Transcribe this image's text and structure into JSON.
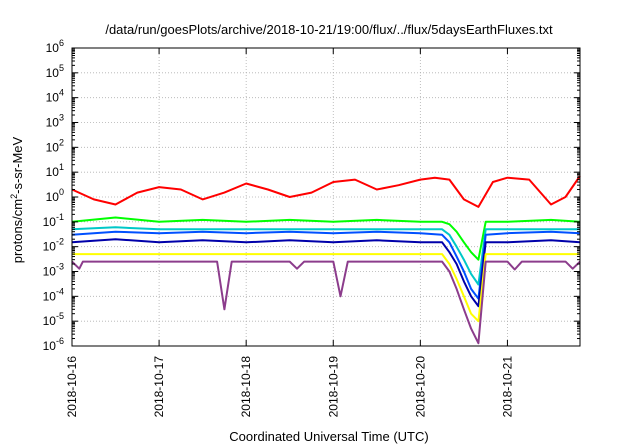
{
  "chart_data": {
    "type": "line",
    "title": "/data/run/goesPlots/archive/2018-10-21/19:00/flux/../flux/5daysEarthFluxes.txt",
    "xlabel": "Coordinated Universal Time (UTC)",
    "ylabel": {
      "base": "protons/cm",
      "sup": "2",
      "rest": "-s-sr-MeV"
    },
    "yscale": "log",
    "ylim": [
      1e-06,
      1000000.0
    ],
    "xlim": [
      "2018-10-16",
      "2018-10-21 20:00"
    ],
    "grid": true,
    "x_ticks": [
      "2018-10-16",
      "2018-10-17",
      "2018-10-18",
      "2018-10-19",
      "2018-10-20",
      "2018-10-21"
    ],
    "y_ticks": [
      {
        "exp": "-6",
        "value": 1e-06
      },
      {
        "exp": "-5",
        "value": 1e-05
      },
      {
        "exp": "-4",
        "value": 0.0001
      },
      {
        "exp": "-3",
        "value": 0.001
      },
      {
        "exp": "-2",
        "value": 0.01
      },
      {
        "exp": "-1",
        "value": 0.1
      },
      {
        "exp": "0",
        "value": 1
      },
      {
        "exp": "1",
        "value": 10
      },
      {
        "exp": "2",
        "value": 100
      },
      {
        "exp": "3",
        "value": 1000
      },
      {
        "exp": "4",
        "value": 10000
      },
      {
        "exp": "5",
        "value": 100000
      },
      {
        "exp": "6",
        "value": 1000000
      }
    ],
    "series": [
      {
        "color": "#ff0000",
        "x": [
          "2018-10-16 00:00",
          "2018-10-16 06:00",
          "2018-10-16 12:00",
          "2018-10-16 18:00",
          "2018-10-17 00:00",
          "2018-10-17 06:00",
          "2018-10-17 12:00",
          "2018-10-17 18:00",
          "2018-10-18 00:00",
          "2018-10-18 06:00",
          "2018-10-18 12:00",
          "2018-10-18 18:00",
          "2018-10-19 00:00",
          "2018-10-19 06:00",
          "2018-10-19 12:00",
          "2018-10-19 18:00",
          "2018-10-20 00:00",
          "2018-10-20 04:00",
          "2018-10-20 08:00",
          "2018-10-20 12:00",
          "2018-10-20 16:00",
          "2018-10-20 20:00",
          "2018-10-21 00:00",
          "2018-10-21 06:00",
          "2018-10-21 12:00",
          "2018-10-21 16:00",
          "2018-10-21 20:00"
        ],
        "y": [
          2,
          0.8,
          0.5,
          1.5,
          2.5,
          2,
          0.8,
          1.5,
          3.5,
          2,
          1,
          1.5,
          4,
          5,
          2,
          3,
          5,
          6,
          5,
          0.8,
          0.4,
          4,
          6,
          5,
          0.5,
          1,
          7
        ]
      },
      {
        "color": "#00ff00",
        "x": [
          "2018-10-16 00:00",
          "2018-10-16 12:00",
          "2018-10-17 00:00",
          "2018-10-17 12:00",
          "2018-10-18 00:00",
          "2018-10-18 12:00",
          "2018-10-19 00:00",
          "2018-10-19 12:00",
          "2018-10-20 00:00",
          "2018-10-20 06:00",
          "2018-10-20 08:00",
          "2018-10-20 10:00",
          "2018-10-20 12:00",
          "2018-10-20 14:00",
          "2018-10-20 16:00",
          "2018-10-20 18:00",
          "2018-10-21 00:00",
          "2018-10-21 12:00",
          "2018-10-21 20:00"
        ],
        "y": [
          0.1,
          0.15,
          0.1,
          0.12,
          0.1,
          0.12,
          0.1,
          0.12,
          0.1,
          0.1,
          0.08,
          0.04,
          0.015,
          0.006,
          0.003,
          0.1,
          0.1,
          0.12,
          0.1
        ]
      },
      {
        "color": "#00c8c8",
        "x": [
          "2018-10-16 00:00",
          "2018-10-16 12:00",
          "2018-10-17 00:00",
          "2018-10-17 12:00",
          "2018-10-18 00:00",
          "2018-10-18 12:00",
          "2018-10-19 00:00",
          "2018-10-19 12:00",
          "2018-10-20 00:00",
          "2018-10-20 06:00",
          "2018-10-20 08:00",
          "2018-10-20 10:00",
          "2018-10-20 12:00",
          "2018-10-20 14:00",
          "2018-10-20 16:00",
          "2018-10-20 18:00",
          "2018-10-21 00:00",
          "2018-10-21 12:00",
          "2018-10-21 20:00"
        ],
        "y": [
          0.05,
          0.06,
          0.05,
          0.05,
          0.05,
          0.05,
          0.05,
          0.05,
          0.05,
          0.05,
          0.03,
          0.01,
          0.003,
          0.0008,
          0.0003,
          0.05,
          0.05,
          0.05,
          0.05
        ]
      },
      {
        "color": "#0050ff",
        "x": [
          "2018-10-16 00:00",
          "2018-10-16 12:00",
          "2018-10-17 00:00",
          "2018-10-17 12:00",
          "2018-10-18 00:00",
          "2018-10-18 12:00",
          "2018-10-19 00:00",
          "2018-10-19 12:00",
          "2018-10-20 00:00",
          "2018-10-20 06:00",
          "2018-10-20 08:00",
          "2018-10-20 10:00",
          "2018-10-20 12:00",
          "2018-10-20 14:00",
          "2018-10-20 16:00",
          "2018-10-20 18:00",
          "2018-10-21 00:00",
          "2018-10-21 12:00",
          "2018-10-21 20:00"
        ],
        "y": [
          0.03,
          0.04,
          0.035,
          0.04,
          0.035,
          0.04,
          0.035,
          0.04,
          0.035,
          0.03,
          0.015,
          0.004,
          0.001,
          0.0002,
          8e-05,
          0.03,
          0.035,
          0.04,
          0.035
        ]
      },
      {
        "color": "#0000aa",
        "x": [
          "2018-10-16 00:00",
          "2018-10-16 12:00",
          "2018-10-17 00:00",
          "2018-10-17 12:00",
          "2018-10-18 00:00",
          "2018-10-18 12:00",
          "2018-10-19 00:00",
          "2018-10-19 12:00",
          "2018-10-20 00:00",
          "2018-10-20 06:00",
          "2018-10-20 08:00",
          "2018-10-20 10:00",
          "2018-10-20 12:00",
          "2018-10-20 14:00",
          "2018-10-20 16:00",
          "2018-10-20 18:00",
          "2018-10-21 00:00",
          "2018-10-21 12:00",
          "2018-10-21 20:00"
        ],
        "y": [
          0.015,
          0.02,
          0.015,
          0.018,
          0.015,
          0.018,
          0.015,
          0.018,
          0.015,
          0.015,
          0.006,
          0.002,
          0.0004,
          0.0001,
          4e-05,
          0.015,
          0.015,
          0.018,
          0.015
        ]
      },
      {
        "color": "#ffff00",
        "x": [
          "2018-10-16 00:00",
          "2018-10-16 12:00",
          "2018-10-17 00:00",
          "2018-10-17 12:00",
          "2018-10-18 00:00",
          "2018-10-18 12:00",
          "2018-10-19 00:00",
          "2018-10-19 12:00",
          "2018-10-20 00:00",
          "2018-10-20 06:00",
          "2018-10-20 08:00",
          "2018-10-20 10:00",
          "2018-10-20 12:00",
          "2018-10-20 14:00",
          "2018-10-20 16:00",
          "2018-10-20 18:00",
          "2018-10-21 00:00",
          "2018-10-21 12:00",
          "2018-10-21 20:00"
        ],
        "y": [
          0.005,
          0.005,
          0.005,
          0.005,
          0.005,
          0.005,
          0.005,
          0.005,
          0.005,
          0.005,
          0.002,
          0.0005,
          0.0001,
          2e-05,
          1e-05,
          0.005,
          0.005,
          0.005,
          0.005
        ]
      },
      {
        "color": "#8c3c8c",
        "x": [
          "2018-10-16 00:00",
          "2018-10-16 02:00",
          "2018-10-16 03:00",
          "2018-10-16 04:00",
          "2018-10-17 00:00",
          "2018-10-17 16:00",
          "2018-10-17 18:00",
          "2018-10-17 20:00",
          "2018-10-18 12:00",
          "2018-10-18 14:00",
          "2018-10-18 16:00",
          "2018-10-19 00:00",
          "2018-10-19 02:00",
          "2018-10-19 04:00",
          "2018-10-20 00:00",
          "2018-10-20 06:00",
          "2018-10-20 08:00",
          "2018-10-20 10:00",
          "2018-10-20 12:00",
          "2018-10-20 14:00",
          "2018-10-20 16:00",
          "2018-10-20 18:00",
          "2018-10-21 00:00",
          "2018-10-21 02:00",
          "2018-10-21 04:00",
          "2018-10-21 16:00",
          "2018-10-21 18:00",
          "2018-10-21 20:00"
        ],
        "y": [
          0.0025,
          0.0013,
          0.0025,
          0.0025,
          0.0025,
          0.0025,
          3e-05,
          0.0025,
          0.0025,
          0.0013,
          0.0025,
          0.0025,
          0.0001,
          0.0025,
          0.0025,
          0.0025,
          0.001,
          0.0002,
          3e-05,
          5e-06,
          1.3e-06,
          0.0025,
          0.0025,
          0.0012,
          0.0025,
          0.0025,
          0.0013,
          0.0025
        ]
      }
    ]
  }
}
